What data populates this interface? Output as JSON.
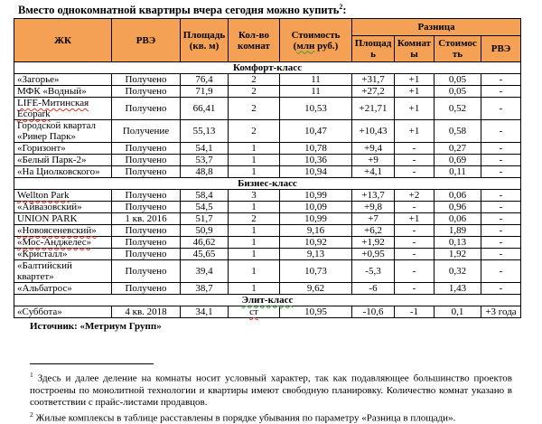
{
  "colors": {
    "header_bg": "#F5A155",
    "border": "#000000",
    "page_bg": "#ffffff"
  },
  "title": {
    "text": "Вместо однокомнатной квартиры вчера сегодня можно купить",
    "sup": "2",
    "suffix": ":"
  },
  "table": {
    "column_keys": [
      "name",
      "rve",
      "area",
      "rooms",
      "price",
      "diff-area",
      "diff-rooms",
      "diff-price",
      "diff-rve"
    ],
    "headers": {
      "zhk": "ЖК",
      "rve": "РВЭ",
      "area": "Площадь (кв. м)",
      "rooms": "Кол-во комнат",
      "price_label": "Стоимость",
      "price_unit_pre": "(",
      "price_unit_word": "млн",
      "price_unit_post": " руб.)",
      "difference": "Разница",
      "diff_area": "Площадь",
      "diff_rooms": "Комнаты",
      "diff_price": "Стоимость",
      "diff_rve": "РВЭ"
    },
    "sections": [
      {
        "label": "Комфорт-класс",
        "rows": [
          {
            "cells": [
              "«Загорье»",
              "Получено",
              "76,4",
              "2",
              "11",
              "+31,7",
              "+1",
              "0,05",
              "-"
            ]
          },
          {
            "cells": [
              "МФК «Водный»",
              "Получено",
              "71,9",
              "2",
              "11",
              "+27,2",
              "+1",
              "0,05",
              "-"
            ]
          },
          {
            "cells": [
              "LIFE-Митинская Ecopark",
              "Получено",
              "66,41",
              "2",
              "10,53",
              "+21,71",
              "+1",
              "0,52",
              "-"
            ],
            "marks": {
              "0": "red"
            }
          },
          {
            "cells": [
              "Городской квартал «Ривер Парк»",
              "Получение",
              "55,13",
              "2",
              "10,47",
              "+10,43",
              "+1",
              "0,58",
              "-"
            ]
          },
          {
            "cells": [
              "«Горизонт»",
              "Получено",
              "54,1",
              "1",
              "10,78",
              "+9,4",
              "-",
              "0,27",
              "-"
            ]
          },
          {
            "cells": [
              "«Белый Парк-2»",
              "Получено",
              "53,7",
              "1",
              "10,36",
              "+9",
              "-",
              "0,69",
              "-"
            ]
          },
          {
            "cells": [
              "«На Циолковского»",
              "Получено",
              "48,8",
              "1",
              "10,94",
              "+4,1",
              "-",
              "0,11",
              "-"
            ]
          }
        ]
      },
      {
        "label": "Бизнес-класс",
        "rows": [
          {
            "cells": [
              "Wellton Park",
              "Получено",
              "58,4",
              "3",
              "10,99",
              "+13,7",
              "+2",
              "0,06",
              "-"
            ],
            "marks": {
              "0": "red"
            }
          },
          {
            "cells": [
              "«Айвазовский»",
              "Получено",
              "54,5",
              "1",
              "10,09",
              "+9,8",
              "-",
              "0,96",
              "-"
            ]
          },
          {
            "cells": [
              "UNION PARK",
              "1 кв. 2016",
              "51,7",
              "2",
              "10,99",
              "+7",
              "+1",
              "0,06",
              "-"
            ]
          },
          {
            "cells": [
              "«Новоясеневский»",
              "Получено",
              "50,9",
              "1",
              "9,16",
              "+6,2",
              "-",
              "1,89",
              "-"
            ],
            "marks": {
              "0": "red"
            }
          },
          {
            "cells": [
              "«Мос-Анджелес»",
              "Получено",
              "46,62",
              "1",
              "10,92",
              "+1,92",
              "-",
              "0,13",
              "-"
            ],
            "marks": {
              "0": "red"
            }
          },
          {
            "cells": [
              "«Кристалл»",
              "Получено",
              "45,65",
              "1",
              "9,13",
              "+0,95",
              "-",
              "1,92",
              "-"
            ]
          },
          {
            "cells": [
              "«Балтийский квартет»",
              "Получено",
              "39,4",
              "1",
              "10,73",
              "-5,3",
              "-",
              "0,32",
              "-"
            ]
          },
          {
            "cells": [
              "«Альбатрос»",
              "Получено",
              "38,7",
              "1",
              "9,62",
              "-6",
              "-",
              "1,43",
              "-"
            ]
          }
        ]
      },
      {
        "label": "Элит-класс",
        "underline": "green",
        "rows": [
          {
            "cells": [
              "«Суббота»",
              "4 кв. 2018",
              "34,1",
              "ст",
              "10,95",
              "-10,6",
              "-1",
              "0,1",
              "+3 года"
            ],
            "marks": {
              "3": "red"
            }
          }
        ]
      }
    ]
  },
  "source": "Источник: «Метриум Групп»",
  "footnotes": [
    {
      "marker": "1",
      "text": "Здесь и далее деление на комнаты носит условный характер, так как подавляющее большинство проектов построены по монолитной технологии и квартиры имеют свободную планировку. Количество комнат указано в соответствии с прайс-листами продавцов."
    },
    {
      "marker": "2",
      "text": "Жилые комплексы в таблице расставлены в порядке убывания по параметру «Разница в площади»."
    }
  ]
}
